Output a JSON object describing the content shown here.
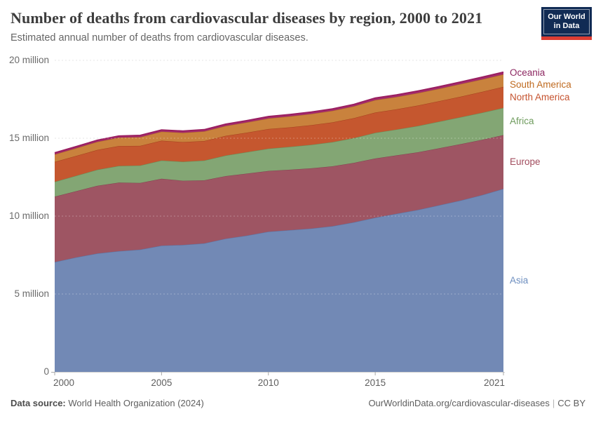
{
  "header": {
    "title": "Number of deaths from cardiovascular diseases by region, 2000 to 2021",
    "subtitle": "Estimated annual number of deaths from cardiovascular diseases.",
    "logo": {
      "line1": "Our World",
      "line2": "in Data",
      "bg_color": "#112b54",
      "accent_color": "#dc3d33"
    }
  },
  "chart_data": {
    "type": "area",
    "stacked": true,
    "title": "Number of deaths from cardiovascular diseases by region, 2000 to 2021",
    "xlabel": "",
    "ylabel": "",
    "ylim": [
      0,
      20
    ],
    "unit": "million deaths",
    "grid": "dashed",
    "legend_position": "right",
    "x": [
      2000,
      2001,
      2002,
      2003,
      2004,
      2005,
      2006,
      2007,
      2008,
      2009,
      2010,
      2011,
      2012,
      2013,
      2014,
      2015,
      2016,
      2017,
      2018,
      2019,
      2020,
      2021
    ],
    "x_ticks": [
      2000,
      2005,
      2010,
      2015,
      2021
    ],
    "y_ticks": [
      {
        "v": 0,
        "label": "0"
      },
      {
        "v": 5,
        "label": "5 million"
      },
      {
        "v": 10,
        "label": "10 million"
      },
      {
        "v": 15,
        "label": "15 million"
      },
      {
        "v": 20,
        "label": "20 million"
      }
    ],
    "series": [
      {
        "name": "Asia",
        "color": "#7289b5",
        "stroke": "#5a73a3",
        "label_color": "#6d8ebf",
        "values": [
          7.05,
          7.35,
          7.6,
          7.75,
          7.85,
          8.1,
          8.15,
          8.25,
          8.55,
          8.75,
          9.0,
          9.1,
          9.2,
          9.35,
          9.6,
          9.9,
          10.15,
          10.4,
          10.7,
          11.0,
          11.35,
          11.75
        ]
      },
      {
        "name": "Europe",
        "color": "#9e5563",
        "stroke": "#83414f",
        "label_color": "#a24d5e",
        "values": [
          4.2,
          4.25,
          4.35,
          4.4,
          4.28,
          4.3,
          4.12,
          4.05,
          4.02,
          3.98,
          3.9,
          3.88,
          3.87,
          3.85,
          3.82,
          3.8,
          3.75,
          3.7,
          3.66,
          3.62,
          3.55,
          3.45
        ]
      },
      {
        "name": "Africa",
        "color": "#83a674",
        "stroke": "#678c57",
        "label_color": "#6f9c5e",
        "values": [
          0.95,
          0.99,
          1.03,
          1.07,
          1.12,
          1.17,
          1.22,
          1.27,
          1.32,
          1.38,
          1.43,
          1.47,
          1.51,
          1.55,
          1.59,
          1.65,
          1.66,
          1.69,
          1.71,
          1.73,
          1.74,
          1.75
        ]
      },
      {
        "name": "North America",
        "color": "#c5572f",
        "stroke": "#a43f1d",
        "label_color": "#c5532f",
        "values": [
          1.28,
          1.27,
          1.27,
          1.28,
          1.26,
          1.27,
          1.26,
          1.25,
          1.26,
          1.25,
          1.26,
          1.25,
          1.26,
          1.27,
          1.28,
          1.3,
          1.3,
          1.31,
          1.31,
          1.32,
          1.34,
          1.35
        ]
      },
      {
        "name": "South America",
        "color": "#c9823d",
        "stroke": "#aa6423",
        "label_color": "#bf6a1f",
        "values": [
          0.48,
          0.5,
          0.52,
          0.54,
          0.56,
          0.58,
          0.6,
          0.62,
          0.64,
          0.66,
          0.68,
          0.7,
          0.72,
          0.74,
          0.76,
          0.8,
          0.79,
          0.8,
          0.8,
          0.81,
          0.8,
          0.8
        ]
      },
      {
        "name": "Oceania",
        "color": "#a62c6e",
        "stroke": "#991f60",
        "label_color": "#8d2862",
        "values": [
          0.1,
          0.1,
          0.1,
          0.1,
          0.11,
          0.11,
          0.11,
          0.11,
          0.11,
          0.11,
          0.12,
          0.12,
          0.12,
          0.12,
          0.12,
          0.13,
          0.13,
          0.13,
          0.13,
          0.13,
          0.14,
          0.14
        ]
      }
    ]
  },
  "footer": {
    "source_label": "Data source:",
    "source_value": "World Health Organization (2024)",
    "link": "OurWorldinData.org/cardiovascular-diseases",
    "separator": "|",
    "license": "CC BY"
  }
}
